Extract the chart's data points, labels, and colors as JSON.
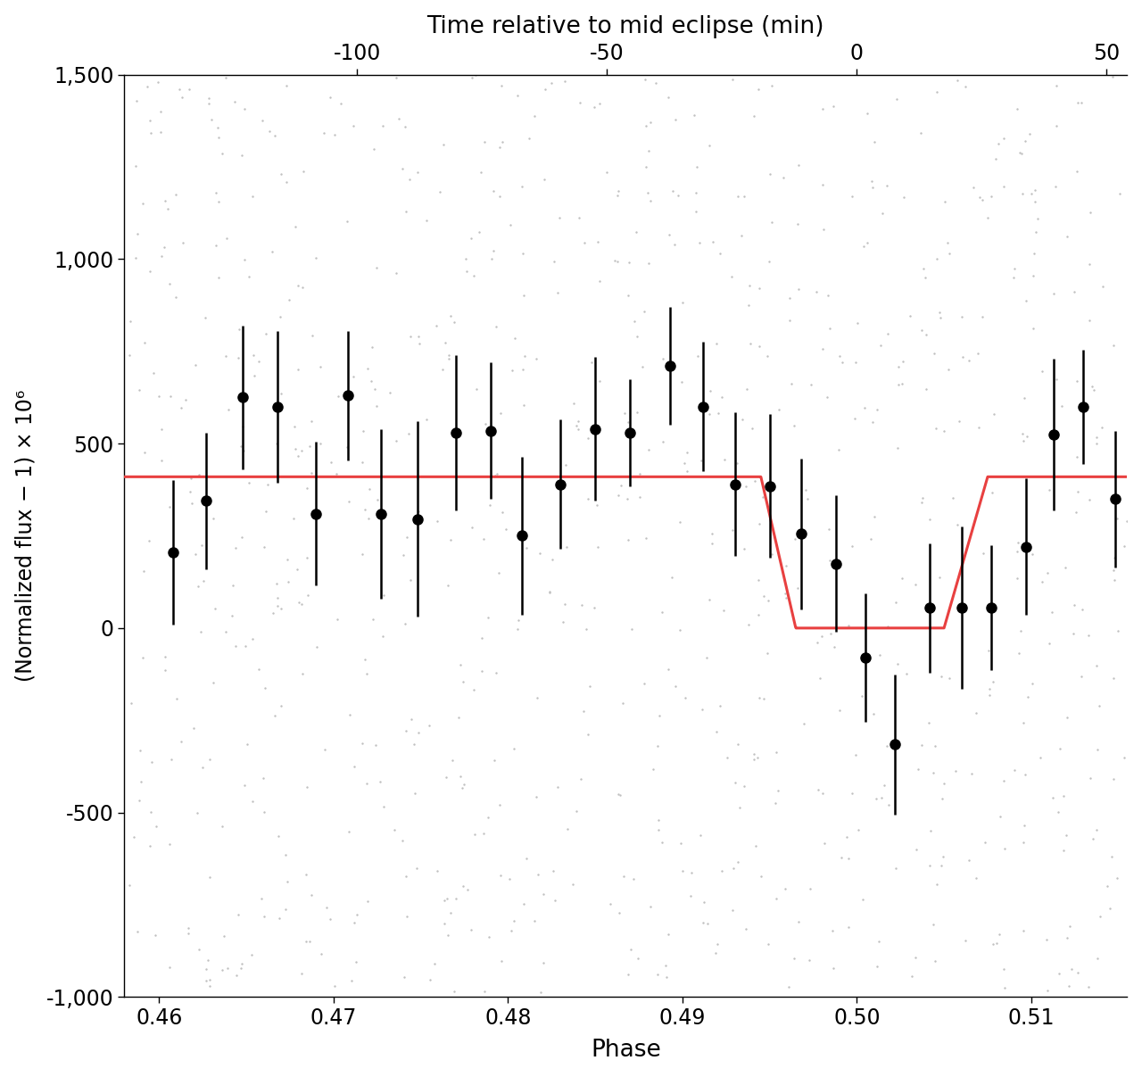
{
  "xlabel_bottom": "Phase",
  "xlabel_top": "Time relative to mid eclipse (min)",
  "ylabel": "(Normalized flux − 1) × 10⁶",
  "xlim": [
    0.458,
    0.5155
  ],
  "ylim": [
    -1000,
    1500
  ],
  "yticks": [
    -1000,
    -500,
    0,
    500,
    1000,
    1500
  ],
  "ytick_labels": [
    "-1,000",
    "-500",
    "0",
    "500",
    "1,000",
    "1,500"
  ],
  "xticks_bottom": [
    0.46,
    0.47,
    0.48,
    0.49,
    0.5,
    0.51
  ],
  "xticks_top_times": [
    -100,
    -50,
    0,
    50
  ],
  "time_scale": 3490,
  "phase_mid": 0.5,
  "scatter_color": "#c0c0c0",
  "model_color": "#e84040",
  "data_color": "#000000",
  "model_level": 410,
  "eclipse_bottom": 0,
  "eclipse_ingress_start": 0.4945,
  "eclipse_ingress_end": 0.4965,
  "eclipse_egress_start": 0.505,
  "eclipse_egress_end": 0.5075,
  "n_scatter": 900,
  "scatter_seed": 42,
  "binned_x": [
    0.4608,
    0.4627,
    0.4648,
    0.4668,
    0.469,
    0.4708,
    0.4727,
    0.4748,
    0.477,
    0.479,
    0.4808,
    0.483,
    0.485,
    0.487,
    0.4893,
    0.4912,
    0.493,
    0.495,
    0.4968,
    0.4988,
    0.5005,
    0.5022,
    0.5042,
    0.506,
    0.5077,
    0.5097,
    0.5113,
    0.513,
    0.5148
  ],
  "binned_y": [
    205,
    345,
    625,
    600,
    310,
    630,
    310,
    295,
    530,
    535,
    250,
    390,
    540,
    530,
    710,
    600,
    390,
    385,
    255,
    175,
    -80,
    -315,
    55,
    55,
    55,
    220,
    525,
    600,
    350
  ],
  "binned_yerr_lo": [
    195,
    185,
    195,
    205,
    195,
    175,
    230,
    265,
    210,
    185,
    215,
    175,
    195,
    145,
    160,
    175,
    195,
    195,
    205,
    185,
    175,
    190,
    175,
    220,
    170,
    185,
    205,
    155,
    185
  ],
  "binned_yerr_hi": [
    195,
    185,
    195,
    205,
    195,
    175,
    230,
    265,
    210,
    185,
    215,
    175,
    195,
    145,
    160,
    175,
    195,
    195,
    205,
    185,
    175,
    190,
    175,
    220,
    170,
    185,
    205,
    155,
    185
  ]
}
